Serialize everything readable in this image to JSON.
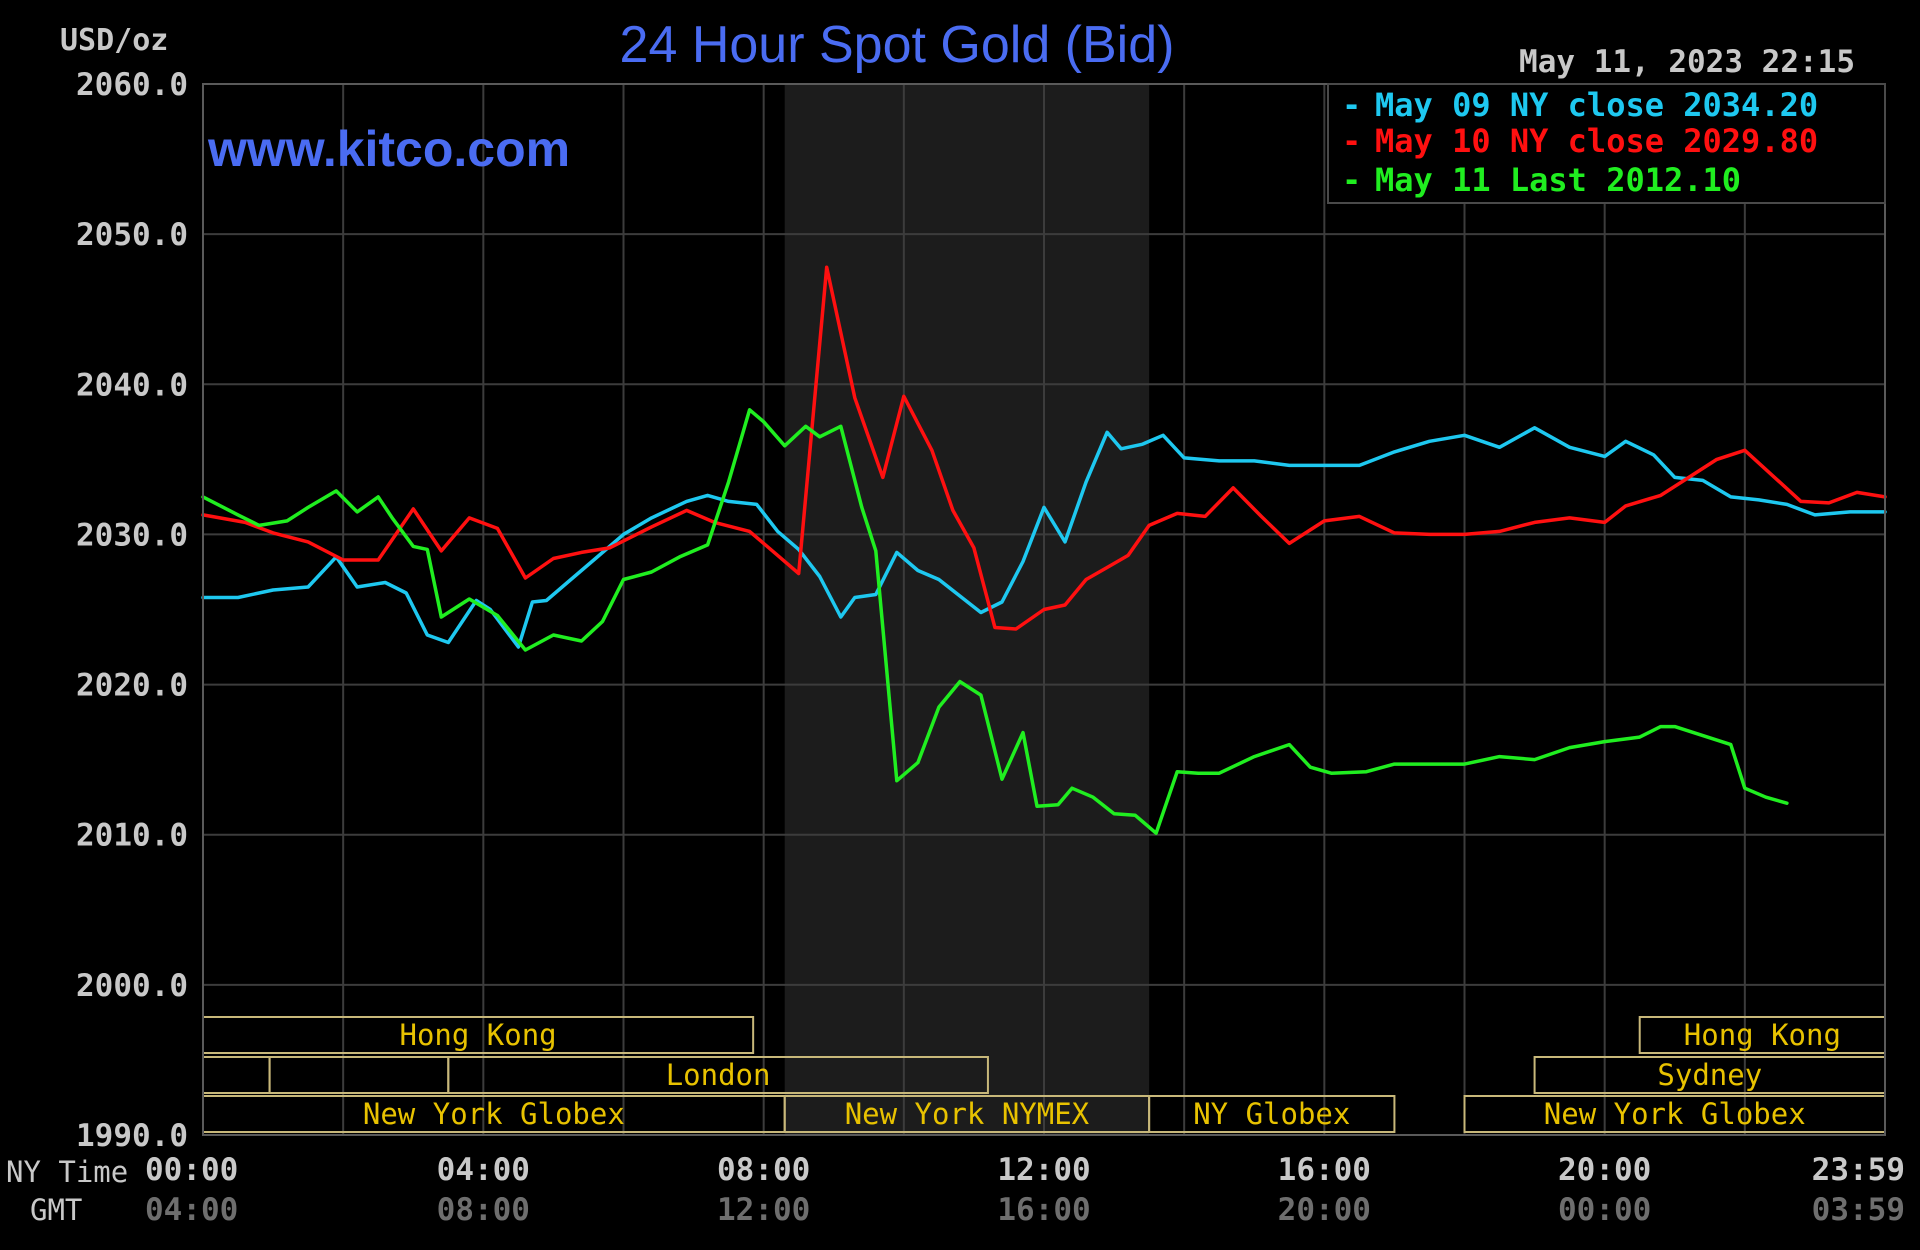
{
  "header": {
    "units": "USD/oz",
    "title": "24 Hour Spot Gold (Bid)",
    "timestamp": "May 11, 2023 22:15",
    "watermark": "www.kitco.com"
  },
  "legend": [
    {
      "marker": "-",
      "label": "May 09 NY close 2034.20",
      "color": "#1ec8f0"
    },
    {
      "marker": "-",
      "label": "May 10 NY close 2029.80",
      "color": "#ff1010"
    },
    {
      "marker": "-",
      "label": "May 11 Last 2012.10",
      "color": "#20ee20"
    }
  ],
  "axis_labels": {
    "ny_time": "NY Time",
    "gmt": "GMT"
  },
  "sessions": {
    "row1": [
      {
        "name": "Hong Kong",
        "start": 0,
        "end": 7.85
      },
      {
        "name": "Hong Kong",
        "start": 20.5,
        "end": 24
      }
    ],
    "row2": [
      {
        "name": "",
        "start": 0,
        "end": 0.95
      },
      {
        "name": "",
        "start": 0.95,
        "end": 3.5
      },
      {
        "name": "London",
        "start": 3.5,
        "end": 11.2
      },
      {
        "name": "Sydney",
        "start": 19.0,
        "end": 24
      }
    ],
    "row3": [
      {
        "name": "New York Globex",
        "start": 0,
        "end": 8.3
      },
      {
        "name": "New York NYMEX",
        "start": 8.3,
        "end": 13.5
      },
      {
        "name": "NY Globex",
        "start": 13.5,
        "end": 17.0
      },
      {
        "name": "New York Globex",
        "start": 18.0,
        "end": 24
      }
    ]
  },
  "chart_data": {
    "type": "line",
    "title": "24 Hour Spot Gold (Bid)",
    "ylabel": "USD/oz",
    "xlabel": "NY Time",
    "xlim": [
      0,
      24
    ],
    "ylim": [
      1990,
      2060
    ],
    "yticks": [
      1990,
      2000,
      2010,
      2020,
      2030,
      2040,
      2050,
      2060
    ],
    "ytick_labels": [
      "1990.0",
      "2000.0",
      "2010.0",
      "2020.0",
      "2030.0",
      "2040.0",
      "2050.0",
      "2060.0"
    ],
    "xticks": [
      0,
      4,
      8,
      12,
      16,
      20,
      24
    ],
    "xtick_labels_ny": [
      "00:00",
      "04:00",
      "08:00",
      "12:00",
      "16:00",
      "20:00",
      "23:59"
    ],
    "xtick_labels_gmt": [
      "04:00",
      "08:00",
      "12:00",
      "16:00",
      "20:00",
      "00:00",
      "03:59"
    ],
    "grid": true,
    "nymex_shade": [
      8.3,
      13.5
    ],
    "legend_position": "top-right",
    "series": [
      {
        "name": "May 09 NY close 2034.20",
        "color": "#1ec8f0",
        "x": [
          0,
          0.5,
          1.0,
          1.5,
          1.9,
          2.2,
          2.6,
          2.9,
          3.2,
          3.5,
          3.9,
          4.1,
          4.5,
          4.7,
          4.9,
          5.2,
          5.6,
          6.0,
          6.4,
          6.9,
          7.2,
          7.5,
          7.9,
          8.2,
          8.5,
          8.8,
          9.1,
          9.3,
          9.6,
          9.9,
          10.2,
          10.5,
          10.8,
          11.1,
          11.4,
          11.7,
          12.0,
          12.3,
          12.6,
          12.9,
          13.1,
          13.4,
          13.7,
          14.0,
          14.5,
          15.0,
          15.5,
          16.0,
          16.5,
          17.0,
          17.5,
          18.0,
          18.5,
          19.0,
          19.5,
          20.0,
          20.3,
          20.7,
          21.0,
          21.4,
          21.8,
          22.2,
          22.6,
          23.0,
          23.5,
          24.0
        ],
        "y": [
          2025.8,
          2025.8,
          2026.3,
          2026.5,
          2028.5,
          2026.5,
          2026.8,
          2026.1,
          2023.3,
          2022.8,
          2025.6,
          2025.0,
          2022.5,
          2025.5,
          2025.6,
          2026.8,
          2028.4,
          2030.0,
          2031.1,
          2032.2,
          2032.6,
          2032.2,
          2032.0,
          2030.2,
          2029.0,
          2027.2,
          2024.5,
          2025.8,
          2026.0,
          2028.8,
          2027.6,
          2027.0,
          2025.9,
          2024.8,
          2025.5,
          2028.2,
          2031.8,
          2029.5,
          2033.5,
          2036.8,
          2035.7,
          2036.0,
          2036.6,
          2035.1,
          2034.9,
          2034.9,
          2034.6,
          2034.6,
          2034.6,
          2035.5,
          2036.2,
          2036.6,
          2035.8,
          2037.1,
          2035.8,
          2035.2,
          2036.2,
          2035.3,
          2033.8,
          2033.6,
          2032.5,
          2032.3,
          2032.0,
          2031.3,
          2031.5,
          2031.5
        ]
      },
      {
        "name": "May 10 NY close 2029.80",
        "color": "#ff1010",
        "x": [
          0,
          0.6,
          1.0,
          1.5,
          2.0,
          2.5,
          3.0,
          3.4,
          3.8,
          4.2,
          4.6,
          5.0,
          5.4,
          5.8,
          6.4,
          6.9,
          7.3,
          7.8,
          8.2,
          8.5,
          8.9,
          9.3,
          9.7,
          10.0,
          10.4,
          10.7,
          11.0,
          11.3,
          11.6,
          12.0,
          12.3,
          12.6,
          12.9,
          13.2,
          13.5,
          13.9,
          14.3,
          14.7,
          15.1,
          15.5,
          16.0,
          16.5,
          17.0,
          17.5,
          18.0,
          18.5,
          19.0,
          19.5,
          20.0,
          20.3,
          20.8,
          21.2,
          21.6,
          22.0,
          22.4,
          22.8,
          23.2,
          23.6,
          24.0
        ],
        "y": [
          2031.3,
          2030.8,
          2030.1,
          2029.5,
          2028.3,
          2028.3,
          2031.7,
          2028.9,
          2031.1,
          2030.4,
          2027.1,
          2028.4,
          2028.8,
          2029.1,
          2030.5,
          2031.6,
          2030.8,
          2030.2,
          2028.6,
          2027.4,
          2047.8,
          2039.1,
          2033.8,
          2039.2,
          2035.6,
          2031.6,
          2029.1,
          2023.8,
          2023.7,
          2025.0,
          2025.3,
          2027.0,
          2027.8,
          2028.6,
          2030.6,
          2031.4,
          2031.2,
          2033.1,
          2031.2,
          2029.4,
          2030.9,
          2031.2,
          2030.1,
          2030.0,
          2030.0,
          2030.2,
          2030.8,
          2031.1,
          2030.8,
          2031.9,
          2032.6,
          2033.8,
          2035.0,
          2035.6,
          2033.9,
          2032.2,
          2032.1,
          2032.8,
          2032.5
        ]
      },
      {
        "name": "May 11 Last 2012.10",
        "color": "#20ee20",
        "x": [
          0,
          0.5,
          0.8,
          1.2,
          1.5,
          1.9,
          2.2,
          2.5,
          2.7,
          3.0,
          3.2,
          3.4,
          3.8,
          4.2,
          4.6,
          5.0,
          5.4,
          5.7,
          6.0,
          6.4,
          6.8,
          7.2,
          7.5,
          7.8,
          8.0,
          8.3,
          8.6,
          8.8,
          9.1,
          9.4,
          9.6,
          9.9,
          10.2,
          10.5,
          10.8,
          11.1,
          11.4,
          11.7,
          11.9,
          12.2,
          12.4,
          12.7,
          13.0,
          13.3,
          13.6,
          13.9,
          14.2,
          14.5,
          15.0,
          15.5,
          15.8,
          16.1,
          16.6,
          17.0,
          17.6,
          18.0,
          18.5,
          19.0,
          19.5,
          20.0,
          20.5,
          20.8,
          21.0,
          21.4,
          21.8,
          22.0,
          22.3,
          22.6
        ],
        "y": [
          2032.5,
          2031.3,
          2030.6,
          2030.9,
          2031.8,
          2032.9,
          2031.5,
          2032.5,
          2031.1,
          2029.2,
          2029.0,
          2024.5,
          2025.7,
          2024.6,
          2022.3,
          2023.3,
          2022.9,
          2024.2,
          2027.0,
          2027.5,
          2028.5,
          2029.3,
          2033.5,
          2038.3,
          2037.5,
          2035.9,
          2037.2,
          2036.5,
          2037.2,
          2031.8,
          2028.9,
          2013.6,
          2014.8,
          2018.5,
          2020.2,
          2019.3,
          2013.7,
          2016.8,
          2011.9,
          2012.0,
          2013.1,
          2012.5,
          2011.4,
          2011.3,
          2010.1,
          2014.2,
          2014.1,
          2014.1,
          2015.2,
          2016.0,
          2014.5,
          2014.1,
          2014.2,
          2014.7,
          2014.7,
          2014.7,
          2015.2,
          2015.0,
          2015.8,
          2016.2,
          2016.5,
          2017.2,
          2017.2,
          2016.6,
          2016.0,
          2013.1,
          2012.5,
          2012.1
        ]
      }
    ]
  }
}
